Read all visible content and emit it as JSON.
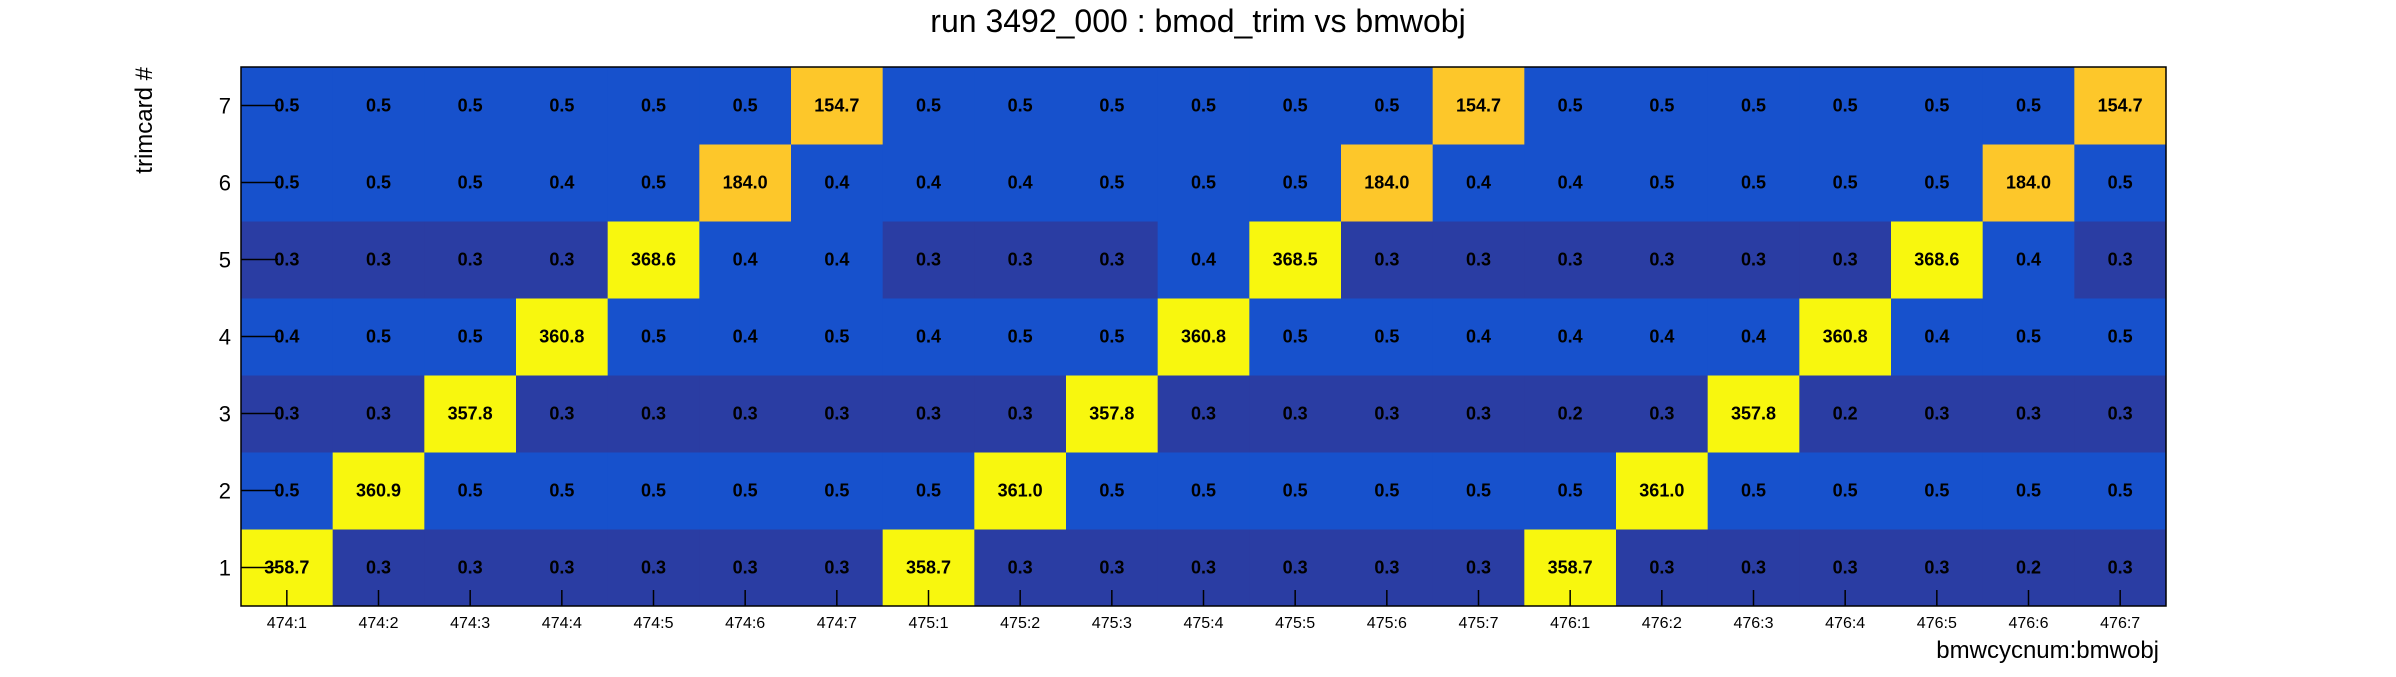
{
  "chart_data": {
    "type": "heatmap",
    "title": "run 3492_000 : bmod_trim vs bmwobj",
    "xlabel": "bmwcycnum:bmwobj",
    "ylabel": "trimcard #",
    "x_categories": [
      "474:1",
      "474:2",
      "474:3",
      "474:4",
      "474:5",
      "474:6",
      "474:7",
      "475:1",
      "475:2",
      "475:3",
      "475:4",
      "475:5",
      "475:6",
      "475:7",
      "476:1",
      "476:2",
      "476:3",
      "476:4",
      "476:5",
      "476:6",
      "476:7"
    ],
    "y_categories": [
      "1",
      "2",
      "3",
      "4",
      "5",
      "6",
      "7"
    ],
    "values": [
      [
        "358.7",
        "0.3",
        "0.3",
        "0.3",
        "0.3",
        "0.3",
        "0.3",
        "358.7",
        "0.3",
        "0.3",
        "0.3",
        "0.3",
        "0.3",
        "0.3",
        "358.7",
        "0.3",
        "0.3",
        "0.3",
        "0.3",
        "0.2",
        "0.3"
      ],
      [
        "0.5",
        "360.9",
        "0.5",
        "0.5",
        "0.5",
        "0.5",
        "0.5",
        "0.5",
        "361.0",
        "0.5",
        "0.5",
        "0.5",
        "0.5",
        "0.5",
        "0.5",
        "361.0",
        "0.5",
        "0.5",
        "0.5",
        "0.5",
        "0.5"
      ],
      [
        "0.3",
        "0.3",
        "357.8",
        "0.3",
        "0.3",
        "0.3",
        "0.3",
        "0.3",
        "0.3",
        "357.8",
        "0.3",
        "0.3",
        "0.3",
        "0.3",
        "0.2",
        "0.3",
        "357.8",
        "0.2",
        "0.3",
        "0.3",
        "0.3"
      ],
      [
        "0.4",
        "0.5",
        "0.5",
        "360.8",
        "0.5",
        "0.4",
        "0.5",
        "0.4",
        "0.5",
        "0.5",
        "360.8",
        "0.5",
        "0.5",
        "0.4",
        "0.4",
        "0.4",
        "0.4",
        "360.8",
        "0.4",
        "0.5",
        "0.5"
      ],
      [
        "0.3",
        "0.3",
        "0.3",
        "0.3",
        "368.6",
        "0.4",
        "0.4",
        "0.3",
        "0.3",
        "0.3",
        "0.4",
        "368.5",
        "0.3",
        "0.3",
        "0.3",
        "0.3",
        "0.3",
        "0.3",
        "368.6",
        "0.4",
        "0.3"
      ],
      [
        "0.5",
        "0.5",
        "0.5",
        "0.4",
        "0.5",
        "184.0",
        "0.4",
        "0.4",
        "0.4",
        "0.5",
        "0.5",
        "0.5",
        "184.0",
        "0.4",
        "0.4",
        "0.5",
        "0.5",
        "0.5",
        "0.5",
        "184.0",
        "0.5"
      ],
      [
        "0.5",
        "0.5",
        "0.5",
        "0.5",
        "0.5",
        "0.5",
        "154.7",
        "0.5",
        "0.5",
        "0.5",
        "0.5",
        "0.5",
        "0.5",
        "154.7",
        "0.5",
        "0.5",
        "0.5",
        "0.5",
        "0.5",
        "0.5",
        "154.7"
      ]
    ],
    "colors": {
      "dark_blue": "#2a3da3",
      "blue": "#1751cc",
      "orange": "#fdc72a",
      "yellow": "#f8f70e",
      "frame": "#000000",
      "tick": "#000000"
    },
    "grid": false,
    "legend": "none"
  }
}
